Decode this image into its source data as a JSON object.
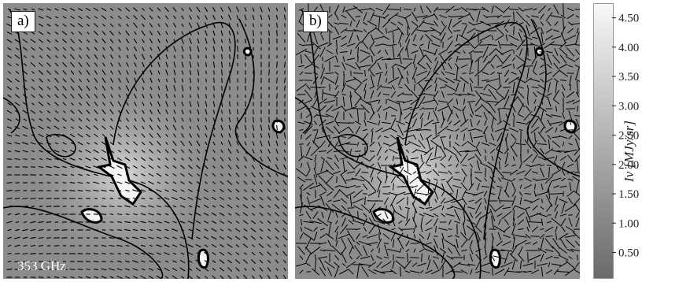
{
  "chart_data": [
    {
      "type": "heatmap",
      "panel": "a)",
      "annotation": "353 GHz",
      "overlay": "polarization-vectors-ordered",
      "contour_levels": [
        1.5,
        3.5
      ]
    },
    {
      "type": "heatmap",
      "panel": "b)",
      "overlay": "polarization-vectors-random",
      "contour_levels": [
        1.5,
        3.5
      ]
    }
  ],
  "colorbar": {
    "label": "I_ν [MJy/sr]",
    "label_display": "Iν [MJy/sr]",
    "ticks": [
      "0.50",
      "1.00",
      "1.50",
      "2.00",
      "2.50",
      "3.00",
      "3.50",
      "4.00",
      "4.50"
    ],
    "tick_values": [
      0.5,
      1.0,
      1.5,
      2.0,
      2.5,
      3.0,
      3.5,
      4.0,
      4.5
    ],
    "range": [
      0.05,
      4.75
    ],
    "colormap": [
      "#6a6a6a",
      "#f8f8f8"
    ]
  },
  "colors": {
    "background": "#8c8c8c",
    "contour": "#000000",
    "vectors": "#000000"
  }
}
